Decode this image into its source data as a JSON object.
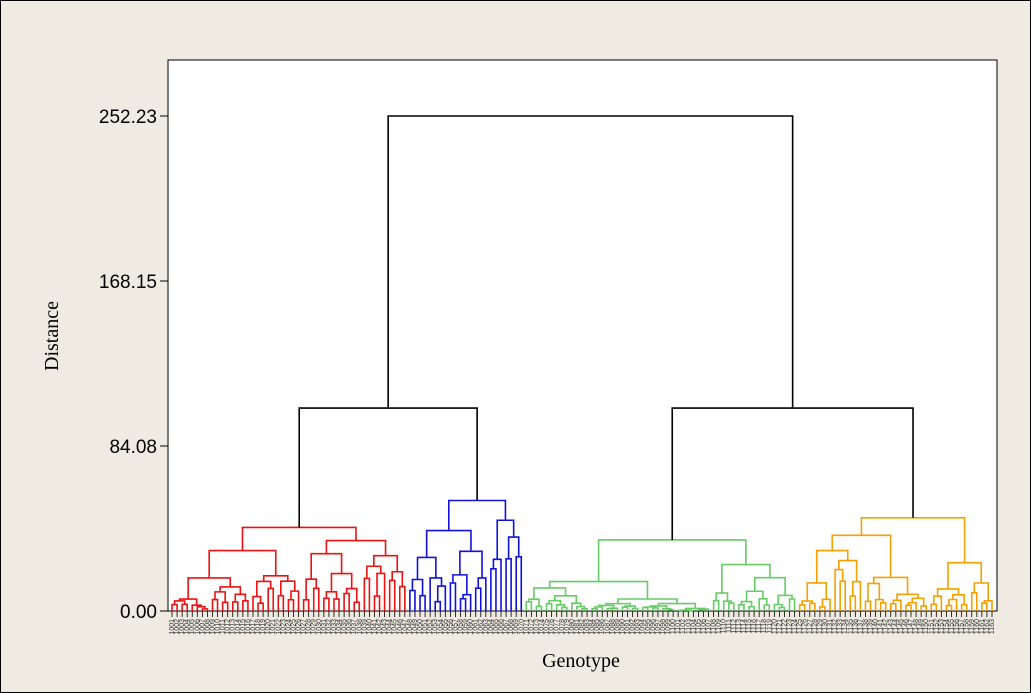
{
  "chart_data": {
    "type": "dendrogram",
    "xlabel": "Genotype",
    "ylabel": "Distance",
    "y_ticks": [
      0.0,
      84.08,
      168.15,
      252.23
    ],
    "y_tick_labels": [
      "0.00",
      "84.08",
      "168.15",
      "252.23"
    ],
    "ylim": [
      0,
      280
    ],
    "grid": false,
    "leaf_count": 163,
    "leaf_labels": [
      "1001",
      "1002",
      "1003",
      "1004",
      "1005",
      "1006",
      "1007",
      "1008",
      "1009",
      "1010",
      "1011",
      "1012",
      "1013",
      "1014",
      "1015",
      "1016",
      "1017",
      "1018",
      "1019",
      "1020",
      "1021",
      "1022",
      "1023",
      "1024",
      "1025",
      "1026",
      "1027",
      "1028",
      "1029",
      "1030",
      "1031",
      "1032",
      "1033",
      "1034",
      "1035",
      "1036",
      "1037",
      "1038",
      "1039",
      "1040",
      "1041",
      "1042",
      "1043",
      "1044",
      "1045",
      "1046",
      "1047",
      "1048",
      "1049",
      "1050",
      "1051",
      "1052",
      "1053",
      "1054",
      "1055",
      "1056",
      "1057",
      "1058",
      "1059",
      "1060",
      "1061",
      "1062",
      "1063",
      "1064",
      "1065",
      "1066",
      "1067",
      "1068",
      "1069",
      "1070",
      "1071",
      "1072",
      "1073",
      "1074",
      "1075",
      "1076",
      "1077",
      "1078",
      "1079",
      "1080",
      "1081",
      "1082",
      "1083",
      "1084",
      "1085",
      "1086",
      "1087",
      "1088",
      "1089",
      "1090",
      "1091",
      "1092",
      "1093",
      "1094",
      "1095",
      "1096",
      "1097",
      "1098",
      "1099",
      "1100",
      "1101",
      "1102",
      "1103",
      "1104",
      "1105",
      "1106",
      "1107",
      "1108",
      "1109",
      "1110",
      "1111",
      "1112",
      "1113",
      "1114",
      "1115",
      "1116",
      "1117",
      "1118",
      "1119",
      "1120",
      "1121",
      "1122",
      "1123",
      "1124",
      "1125",
      "1126",
      "1127",
      "1128",
      "1129",
      "1130",
      "1131",
      "1132",
      "1133",
      "1134",
      "1135",
      "1136",
      "1137",
      "1138",
      "1139",
      "1140",
      "1141",
      "1142",
      "1143",
      "1144",
      "1145",
      "1146",
      "1147",
      "1148",
      "1149",
      "1150",
      "1151",
      "1152",
      "1153",
      "1154",
      "1155",
      "1156",
      "1157",
      "1158",
      "1159",
      "1160",
      "1161",
      "1162",
      "1163"
    ],
    "clusters": [
      {
        "color": "#ee1111",
        "leaf_start": 0,
        "leaf_end": 46,
        "height": 42.6
      },
      {
        "color": "#1111dd",
        "leaf_start": 47,
        "leaf_end": 69,
        "height": 56.3
      },
      {
        "color": "#66cc66",
        "leaf_start": 70,
        "leaf_end": 123,
        "height": 36.2
      },
      {
        "color": "#f5a000",
        "leaf_start": 124,
        "leaf_end": 162,
        "height": 47.5
      }
    ],
    "top_links": [
      {
        "left": 0,
        "right": 1,
        "height": 103.4
      },
      {
        "left": 2,
        "right": 3,
        "height": 103.4
      },
      {
        "left": "0+1",
        "right": "2+3",
        "height": 252.23
      }
    ]
  }
}
